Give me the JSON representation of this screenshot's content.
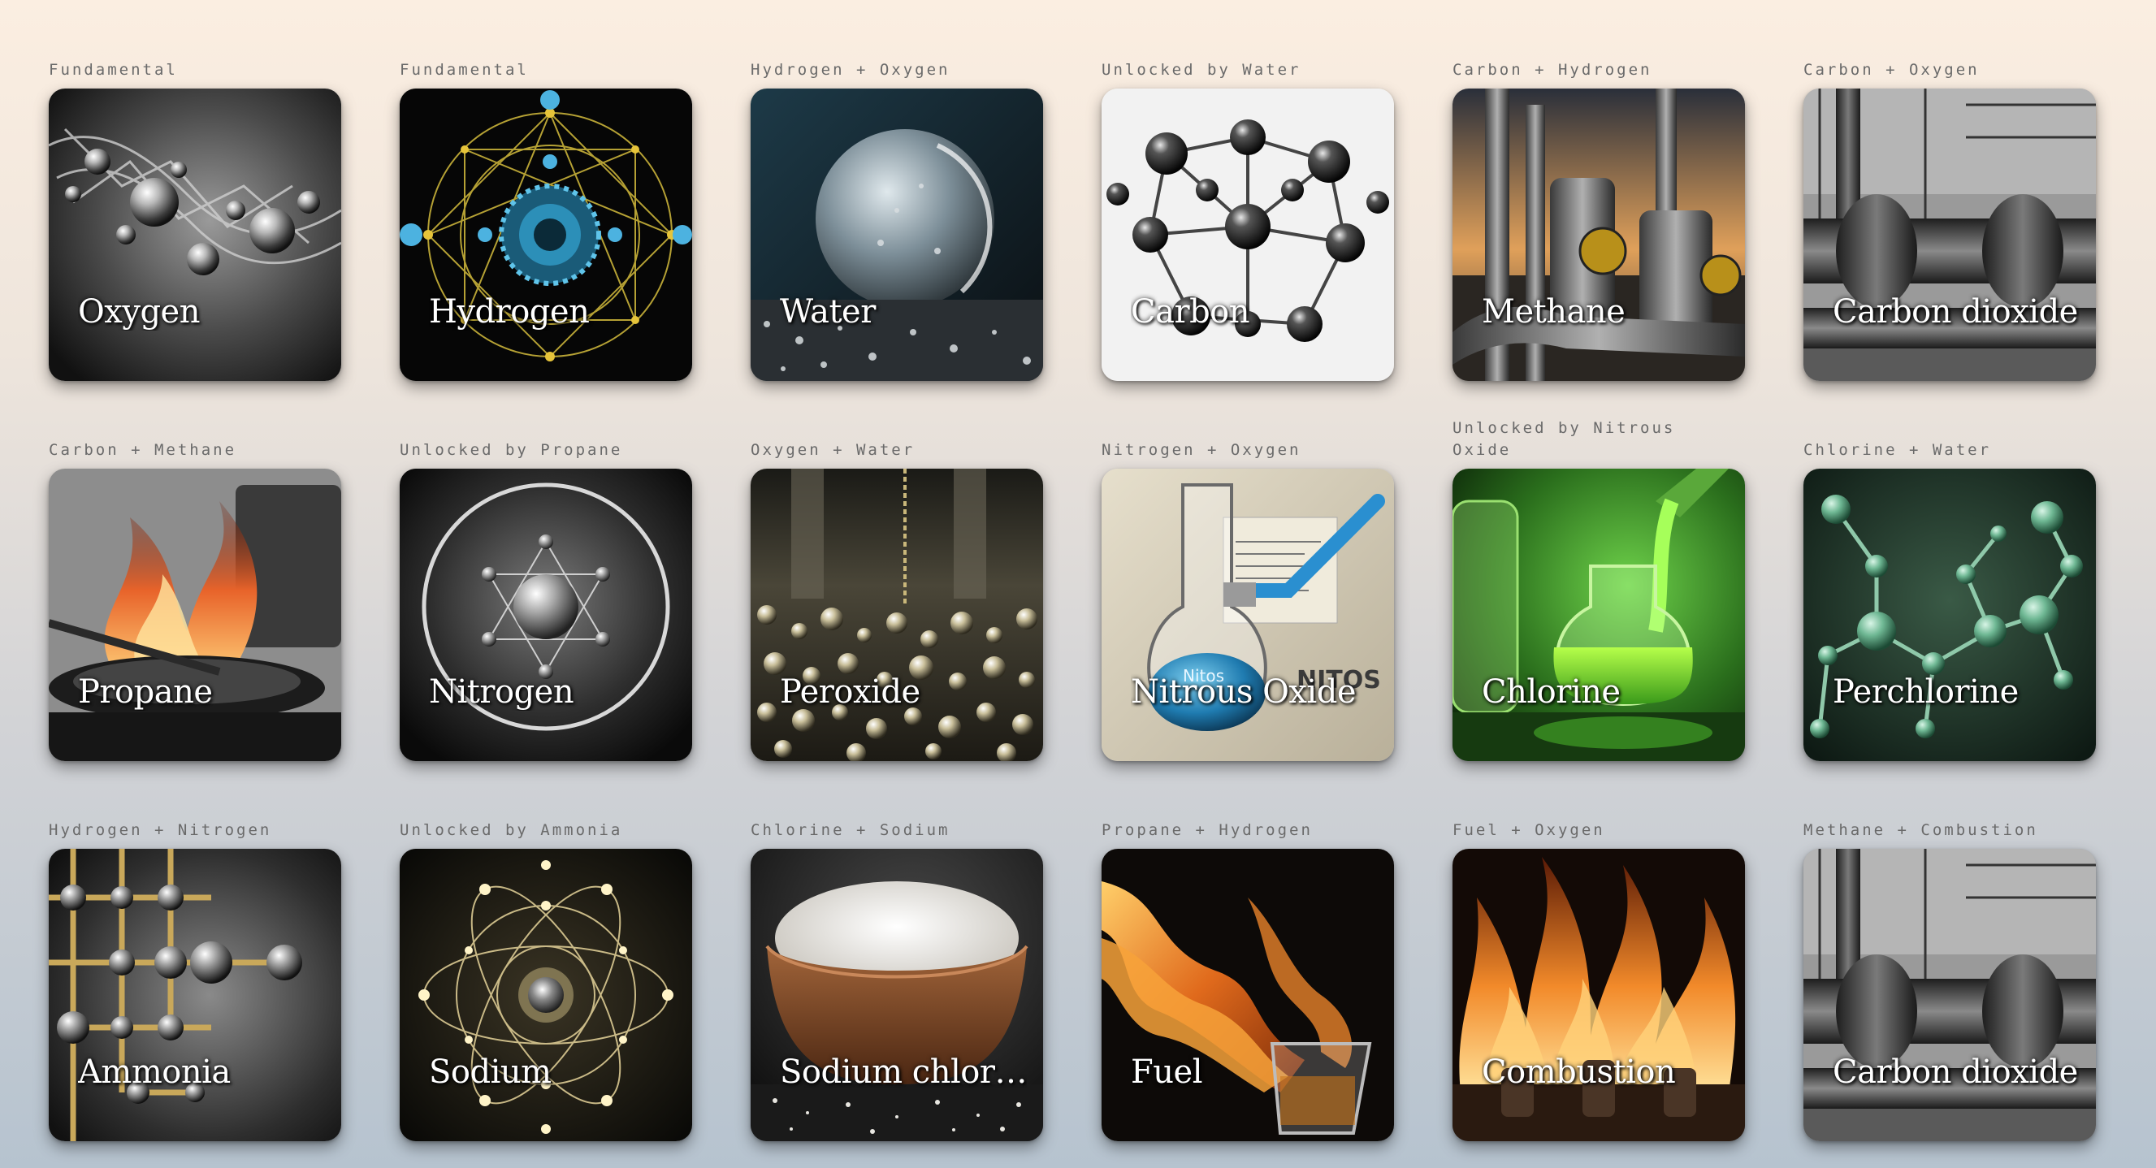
{
  "cards": [
    {
      "hint": "Fundamental",
      "name": "Oxygen"
    },
    {
      "hint": "Fundamental",
      "name": "Hydrogen"
    },
    {
      "hint": "Hydrogen + Oxygen",
      "name": "Water"
    },
    {
      "hint": "Unlocked by Water",
      "name": "Carbon"
    },
    {
      "hint": "Carbon + Hydrogen",
      "name": "Methane"
    },
    {
      "hint": "Carbon + Oxygen",
      "name": "Carbon dioxide"
    },
    {
      "hint": "Carbon + Methane",
      "name": "Propane"
    },
    {
      "hint": "Unlocked by Propane",
      "name": "Nitrogen"
    },
    {
      "hint": "Oxygen + Water",
      "name": "Peroxide"
    },
    {
      "hint": "Nitrogen + Oxygen",
      "name": "Nitrous Oxide"
    },
    {
      "hint": "Unlocked by Nitrous Oxide",
      "name": "Chlorine"
    },
    {
      "hint": "Chlorine + Water",
      "name": "Perchlorine"
    },
    {
      "hint": "Hydrogen + Nitrogen",
      "name": "Ammonia"
    },
    {
      "hint": "Unlocked by Ammonia",
      "name": "Sodium"
    },
    {
      "hint": "Chlorine + Sodium",
      "name": "Sodium chlor…"
    },
    {
      "hint": "Propane + Hydrogen",
      "name": "Fuel"
    },
    {
      "hint": "Fuel + Oxygen",
      "name": "Combustion"
    },
    {
      "hint": "Methane + Combustion",
      "name": "Carbon dioxide"
    }
  ],
  "flask_label": "Nitos",
  "flask_brand": "NITOS"
}
